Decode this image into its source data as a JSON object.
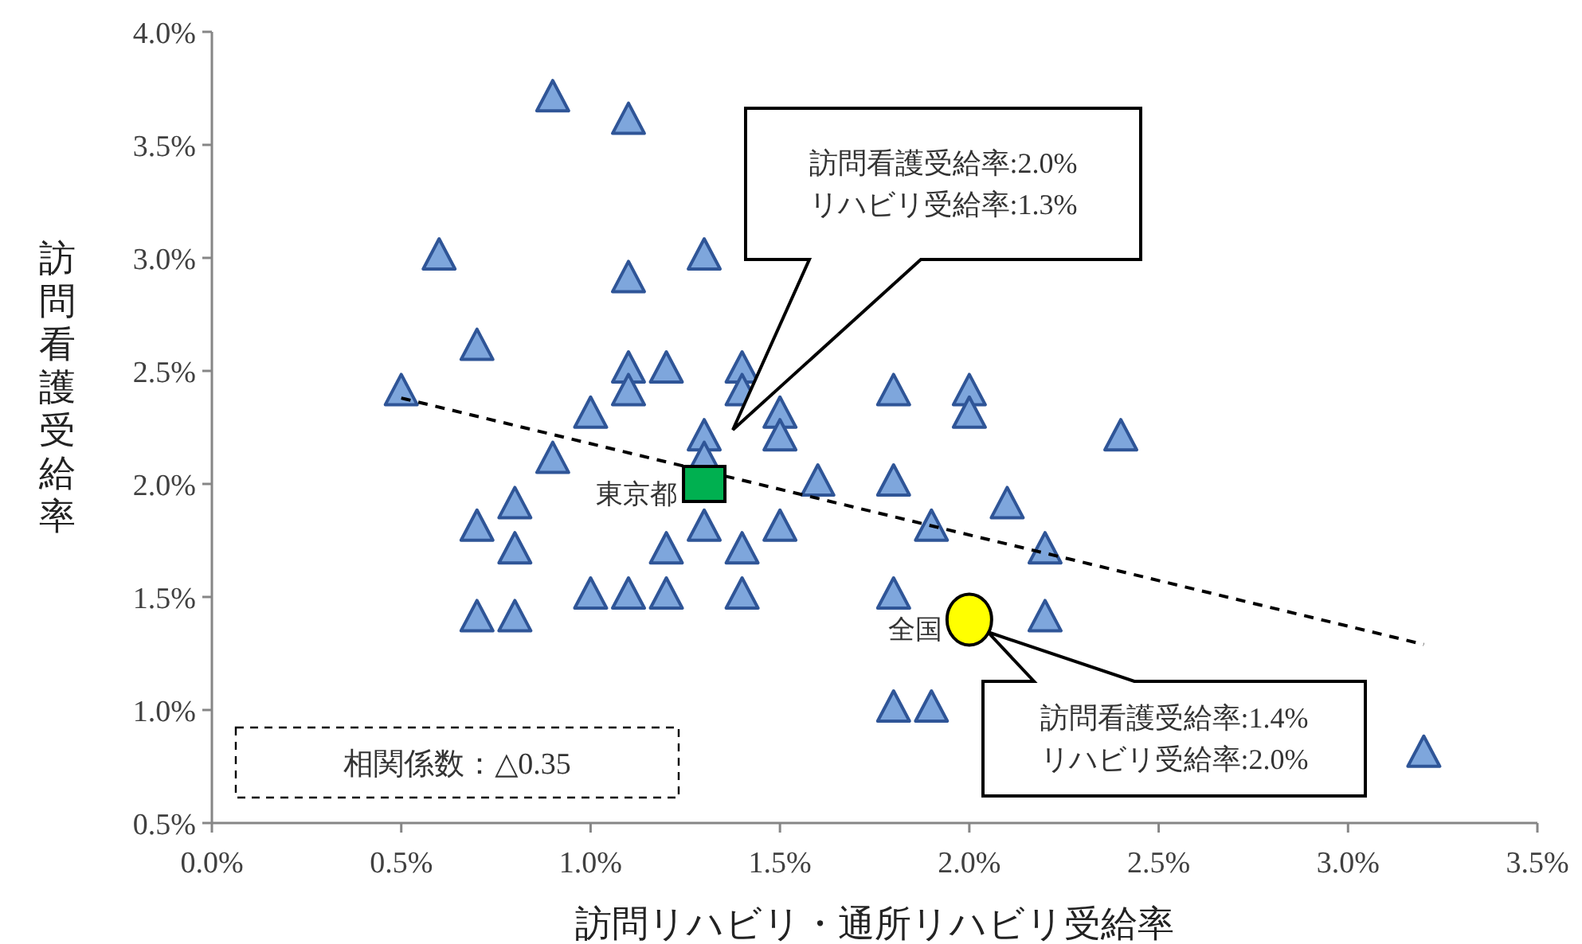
{
  "chart_data": {
    "type": "scatter",
    "xlabel": "訪問リハビリ・通所リハビリ受給率",
    "ylabel": "訪問看護受給率",
    "xlim": [
      0,
      3.5
    ],
    "ylim": [
      0.5,
      4.0
    ],
    "xticks": [
      {
        "value": 0,
        "label": "0.0%"
      },
      {
        "value": 0.5,
        "label": "0.5%"
      },
      {
        "value": 1,
        "label": "1.0%"
      },
      {
        "value": 1.5,
        "label": "1.5%"
      },
      {
        "value": 2,
        "label": "2.0%"
      },
      {
        "value": 2.5,
        "label": "2.5%"
      },
      {
        "value": 3,
        "label": "3.0%"
      },
      {
        "value": 3.5,
        "label": "3.5%"
      }
    ],
    "yticks": [
      {
        "value": 0.5,
        "label": "0.5%"
      },
      {
        "value": 1,
        "label": "1.0%"
      },
      {
        "value": 1.5,
        "label": "1.5%"
      },
      {
        "value": 2,
        "label": "2.0%"
      },
      {
        "value": 2.5,
        "label": "2.5%"
      },
      {
        "value": 3,
        "label": "3.0%"
      },
      {
        "value": 3.5,
        "label": "3.5%"
      },
      {
        "value": 4,
        "label": "4.0%"
      }
    ],
    "grid": false,
    "series": [
      {
        "type": "scatter",
        "marker": "triangle",
        "color": "#7ea6dc",
        "x": [
          0.5,
          0.6,
          0.7,
          0.7,
          0.7,
          0.8,
          0.8,
          0.8,
          0.9,
          0.9,
          1.0,
          1.0,
          1.1,
          1.1,
          1.1,
          1.1,
          1.1,
          1.2,
          1.2,
          1.2,
          1.3,
          1.3,
          1.3,
          1.3,
          1.4,
          1.4,
          1.4,
          1.4,
          1.5,
          1.5,
          1.5,
          1.6,
          1.8,
          1.8,
          1.8,
          1.8,
          1.9,
          1.9,
          2.0,
          2.0,
          2.1,
          2.2,
          2.2,
          2.4,
          3.2
        ],
        "values": [
          2.4,
          3.0,
          2.6,
          1.8,
          1.4,
          1.9,
          1.7,
          1.4,
          3.7,
          2.1,
          2.3,
          1.5,
          3.6,
          2.9,
          2.5,
          2.4,
          1.5,
          2.5,
          1.7,
          1.5,
          3.0,
          2.2,
          2.1,
          1.8,
          2.5,
          2.4,
          1.7,
          1.5,
          2.3,
          2.2,
          1.8,
          2.0,
          2.4,
          2.0,
          1.5,
          1.0,
          1.8,
          1.0,
          2.4,
          2.3,
          1.9,
          1.7,
          1.4,
          2.2,
          0.8
        ]
      },
      {
        "type": "line",
        "line_style": "dashed",
        "marker": "none",
        "color": "#000000",
        "x": [
          0.5,
          3.2
        ],
        "values": [
          2.38,
          1.29
        ]
      },
      {
        "type": "scatter",
        "marker": "square",
        "name": "東京都",
        "color": "#00b050",
        "x": [
          1.3
        ],
        "values": [
          2.0
        ]
      },
      {
        "type": "scatter",
        "marker": "circle",
        "name": "全国",
        "color": "#ffff00",
        "x": [
          2.0
        ],
        "values": [
          1.4
        ]
      }
    ],
    "annotations": [
      "訪問看護受給率:2.0%\nリハビリ受給率:1.3%",
      "訪問看護受給率:1.4%\nリハビリ受給率:2.0%",
      "相関係数：△0.35"
    ]
  }
}
